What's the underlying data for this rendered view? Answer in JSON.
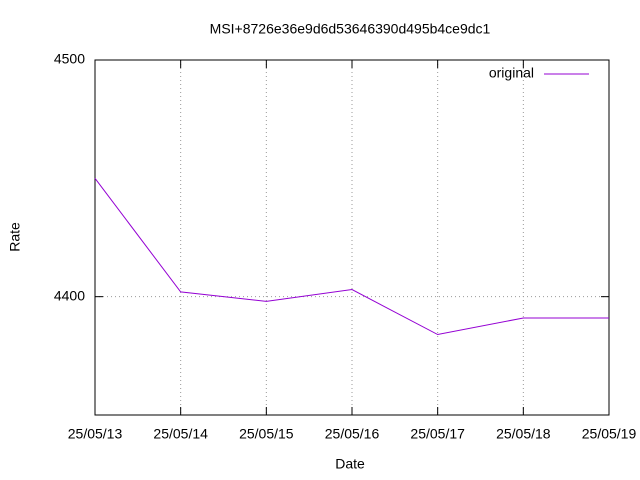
{
  "chart_data": {
    "type": "line",
    "title": "MSI+8726e36e9d6d53646390d495b4ce9dc1",
    "x_label": "Date",
    "y_label": "Rate",
    "categories": [
      "25/05/13",
      "25/05/14",
      "25/05/15",
      "25/05/16",
      "25/05/17",
      "25/05/18",
      "25/05/19"
    ],
    "series": [
      {
        "name": "original",
        "color": "#9400d3",
        "values": [
          4450,
          4402,
          4398,
          4403,
          4384,
          4391,
          4391
        ]
      }
    ],
    "ylim": [
      4350,
      4500
    ],
    "yticks": [
      4400,
      4500
    ],
    "grid": true,
    "legend": "top-right"
  }
}
